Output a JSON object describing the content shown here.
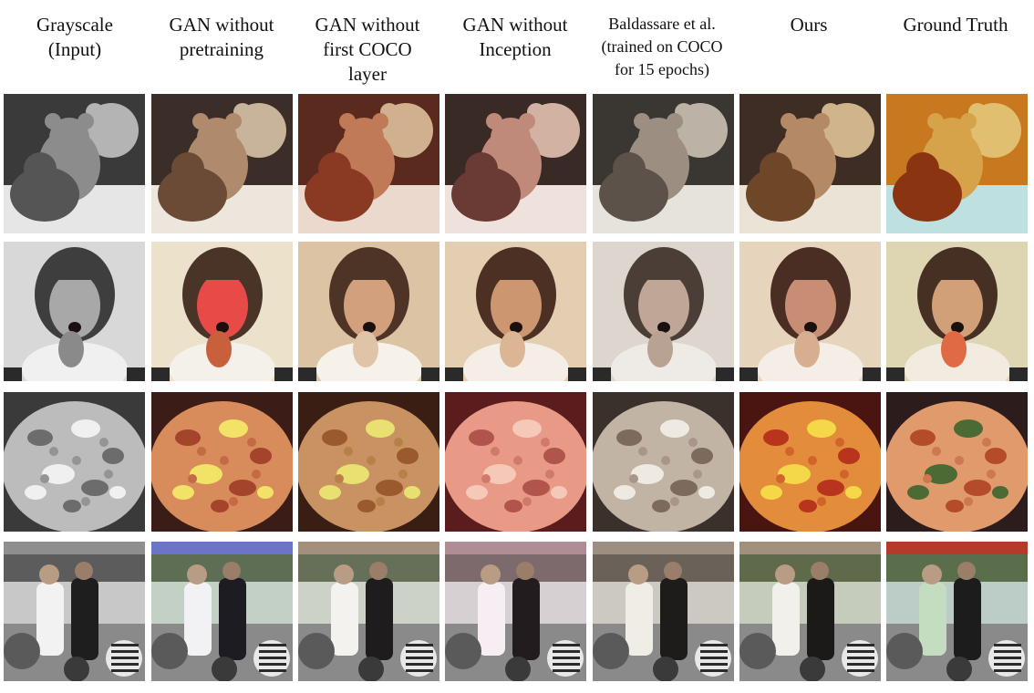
{
  "columns": [
    {
      "id": "grayscale",
      "lines": [
        "Grayscale",
        "(Input)"
      ],
      "small": false
    },
    {
      "id": "gan-no-pretraining",
      "lines": [
        "GAN without",
        "pretraining"
      ],
      "small": false
    },
    {
      "id": "gan-no-first-coco",
      "lines": [
        "GAN without",
        "first COCO",
        "layer"
      ],
      "small": false
    },
    {
      "id": "gan-no-inception",
      "lines": [
        "GAN without",
        "Inception"
      ],
      "small": false
    },
    {
      "id": "baldassare",
      "lines": [
        "Baldassare et al.",
        "(trained on COCO",
        "for 15 epochs)"
      ],
      "small": true
    },
    {
      "id": "ours",
      "lines": [
        "Ours"
      ],
      "small": false
    },
    {
      "id": "ground-truth",
      "lines": [
        "Ground Truth"
      ],
      "small": false
    }
  ],
  "rows": [
    {
      "subject": "teddy-bears",
      "palettes": [
        {
          "bg": "#3a3a3a",
          "a": "#8c8c8c",
          "b": "#555555",
          "c": "#e6e6e6",
          "d": "#b4b4b4"
        },
        {
          "bg": "#3b2e28",
          "a": "#b08a6c",
          "b": "#6b4a36",
          "c": "#ece6dc",
          "d": "#c8b49a"
        },
        {
          "bg": "#5a2a1e",
          "a": "#c07a58",
          "b": "#8a3a22",
          "c": "#ead9cc",
          "d": "#d0b08e"
        },
        {
          "bg": "#3a2a26",
          "a": "#c08a7a",
          "b": "#6a3a34",
          "c": "#efe2dc",
          "d": "#d2b2a2"
        },
        {
          "bg": "#3a3632",
          "a": "#9c8f82",
          "b": "#5c524a",
          "c": "#e6e2dc",
          "d": "#bcb2a6"
        },
        {
          "bg": "#3d2d24",
          "a": "#b48a66",
          "b": "#6e4628",
          "c": "#ebe3d6",
          "d": "#cfb48c"
        },
        {
          "bg": "#c8781e",
          "a": "#d6a24a",
          "b": "#8a3412",
          "c": "#bfe0e0",
          "d": "#e0c070"
        }
      ]
    },
    {
      "subject": "girl",
      "palettes": [
        {
          "bg": "#d8d8d8",
          "a": "#a8a8a8",
          "b": "#3e3e3e",
          "c": "#f0f0f0",
          "d": "#8a8a8a"
        },
        {
          "bg": "#ece2cc",
          "a": "#e84a48",
          "b": "#4a3428",
          "c": "#f4f0ea",
          "d": "#c8603c"
        },
        {
          "bg": "#dcc3a3",
          "a": "#d2a07c",
          "b": "#4e3426",
          "c": "#f6f2ea",
          "d": "#e0c4a8"
        },
        {
          "bg": "#e4ceb2",
          "a": "#cc9670",
          "b": "#4c3024",
          "c": "#f4eee6",
          "d": "#dcb694"
        },
        {
          "bg": "#dcd6ce",
          "a": "#c0a696",
          "b": "#4a3e36",
          "c": "#eeeae6",
          "d": "#b8a294"
        },
        {
          "bg": "#e6d4bc",
          "a": "#c88e74",
          "b": "#4a2e24",
          "c": "#f4eee6",
          "d": "#d8ae90"
        },
        {
          "bg": "#ded6b2",
          "a": "#d2a078",
          "b": "#463024",
          "c": "#f2ece0",
          "d": "#e06a44"
        }
      ]
    },
    {
      "subject": "pizza",
      "palettes": [
        {
          "bg": "#3a3a3a",
          "a": "#bcbcbc",
          "b": "#6c6c6c",
          "c": "#f0f0f0",
          "d": "#949494"
        },
        {
          "bg": "#3c1c16",
          "a": "#d88c5c",
          "b": "#a4442a",
          "c": "#f2e266",
          "d": "#c46a44"
        },
        {
          "bg": "#3a1e14",
          "a": "#c89262",
          "b": "#9a5a2e",
          "c": "#e8e070",
          "d": "#b88048"
        },
        {
          "bg": "#5a1c1c",
          "a": "#e89a86",
          "b": "#b0544c",
          "c": "#f6c8b8",
          "d": "#d07a6c"
        },
        {
          "bg": "#3a302c",
          "a": "#c2b4a4",
          "b": "#7c6a5c",
          "c": "#eeeae2",
          "d": "#a8968a"
        },
        {
          "bg": "#4a1410",
          "a": "#e28c3c",
          "b": "#b8341c",
          "c": "#f4d848",
          "d": "#d0642a"
        },
        {
          "bg": "#2c1c1c",
          "a": "#e09a6c",
          "b": "#b44c2c",
          "c": "#4c6a34",
          "d": "#cc7850"
        }
      ]
    },
    {
      "subject": "crowd",
      "palettes": [
        {
          "bg": "#c8c8c8",
          "a": "#5c5c5c",
          "b": "#1e1e1e",
          "c": "#f2f2f2",
          "d": "#8e8e8e"
        },
        {
          "bg": "#c2d0c6",
          "a": "#5e6e54",
          "b": "#1c1c22",
          "c": "#f2f2f4",
          "d": "#6c74c8"
        },
        {
          "bg": "#ccd2c8",
          "a": "#667058",
          "b": "#1e1c1c",
          "c": "#f4f2ee",
          "d": "#a48e7c"
        },
        {
          "bg": "#d6d0d2",
          "a": "#7c6a6c",
          "b": "#221c1e",
          "c": "#f6eef2",
          "d": "#b08c94"
        },
        {
          "bg": "#ccc8c2",
          "a": "#6a6258",
          "b": "#1e1c1a",
          "c": "#f0ece6",
          "d": "#9c8e80"
        },
        {
          "bg": "#c6ccbc",
          "a": "#5e6a4a",
          "b": "#1c1a18",
          "c": "#f2f0ea",
          "d": "#a2907c"
        },
        {
          "bg": "#bcccc6",
          "a": "#5a6e4c",
          "b": "#1c1c1c",
          "c": "#c4dcc0",
          "d": "#b43a2a"
        }
      ]
    }
  ]
}
